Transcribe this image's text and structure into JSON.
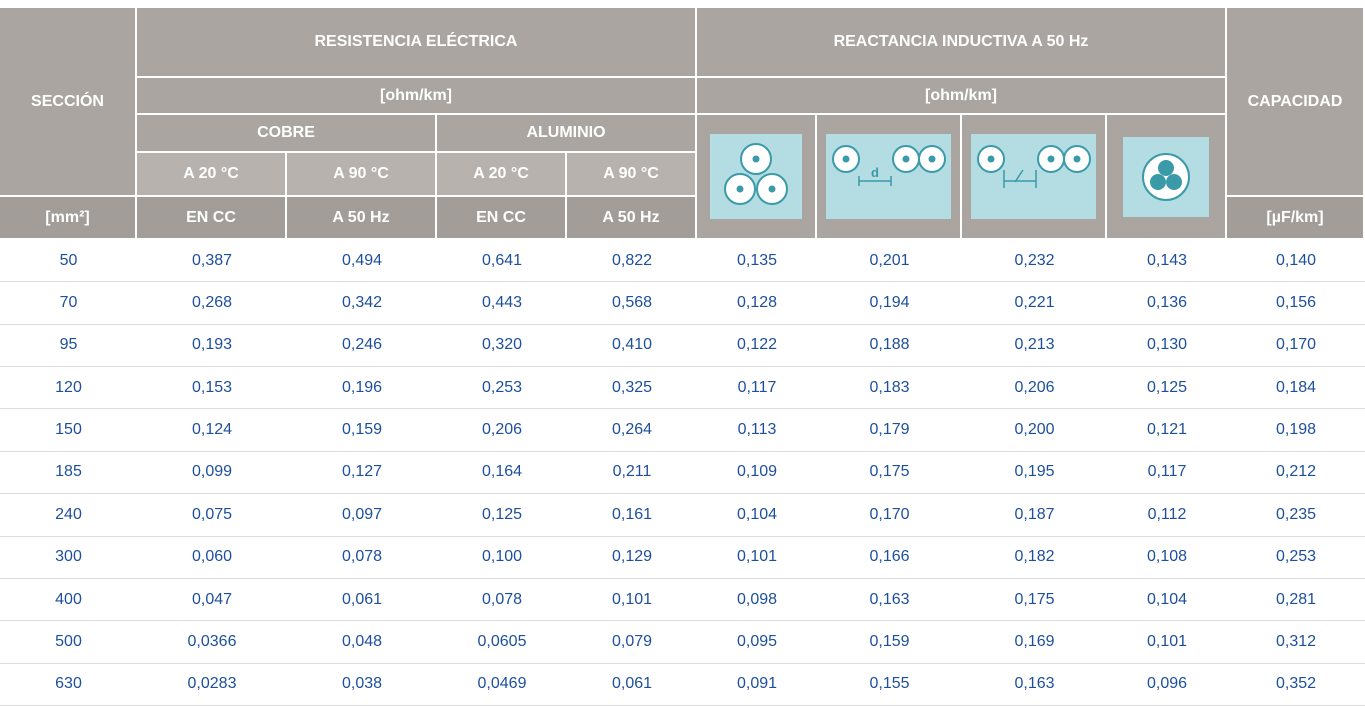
{
  "header": {
    "section": "SECCIÓN",
    "resistance": "RESISTENCIA ELÉCTRICA",
    "reactance": "REACTANCIA INDUCTIVA A 50 Hz",
    "capacity": "CAPACIDAD",
    "resistance_unit": "[ohm/km]",
    "reactance_unit": "[ohm/km]",
    "copper": "COBRE",
    "aluminum": "ALUMINIO",
    "temps": [
      "A 20 °C",
      "A 90 °C",
      "A 20 °C",
      "A 90 °C"
    ],
    "units": [
      "[mm²]",
      "EN CC",
      "A 50 Hz",
      "EN CC",
      "A 50 Hz"
    ],
    "capacity_unit": "[µF/km]"
  },
  "rows": [
    [
      "50",
      "0,387",
      "0,494",
      "0,641",
      "0,822",
      "0,135",
      "0,201",
      "0,232",
      "0,143",
      "0,140"
    ],
    [
      "70",
      "0,268",
      "0,342",
      "0,443",
      "0,568",
      "0,128",
      "0,194",
      "0,221",
      "0,136",
      "0,156"
    ],
    [
      "95",
      "0,193",
      "0,246",
      "0,320",
      "0,410",
      "0,122",
      "0,188",
      "0,213",
      "0,130",
      "0,170"
    ],
    [
      "120",
      "0,153",
      "0,196",
      "0,253",
      "0,325",
      "0,117",
      "0,183",
      "0,206",
      "0,125",
      "0,184"
    ],
    [
      "150",
      "0,124",
      "0,159",
      "0,206",
      "0,264",
      "0,113",
      "0,179",
      "0,200",
      "0,121",
      "0,198"
    ],
    [
      "185",
      "0,099",
      "0,127",
      "0,164",
      "0,211",
      "0,109",
      "0,175",
      "0,195",
      "0,117",
      "0,212"
    ],
    [
      "240",
      "0,075",
      "0,097",
      "0,125",
      "0,161",
      "0,104",
      "0,170",
      "0,187",
      "0,112",
      "0,235"
    ],
    [
      "300",
      "0,060",
      "0,078",
      "0,100",
      "0,129",
      "0,101",
      "0,166",
      "0,182",
      "0,108",
      "0,253"
    ],
    [
      "400",
      "0,047",
      "0,061",
      "0,078",
      "0,101",
      "0,098",
      "0,163",
      "0,175",
      "0,104",
      "0,281"
    ],
    [
      "500",
      "0,0366",
      "0,048",
      "0,0605",
      "0,079",
      "0,095",
      "0,159",
      "0,169",
      "0,101",
      "0,312"
    ],
    [
      "630",
      "0,0283",
      "0,038",
      "0,0469",
      "0,061",
      "0,091",
      "0,155",
      "0,163",
      "0,096",
      "0,352"
    ]
  ]
}
